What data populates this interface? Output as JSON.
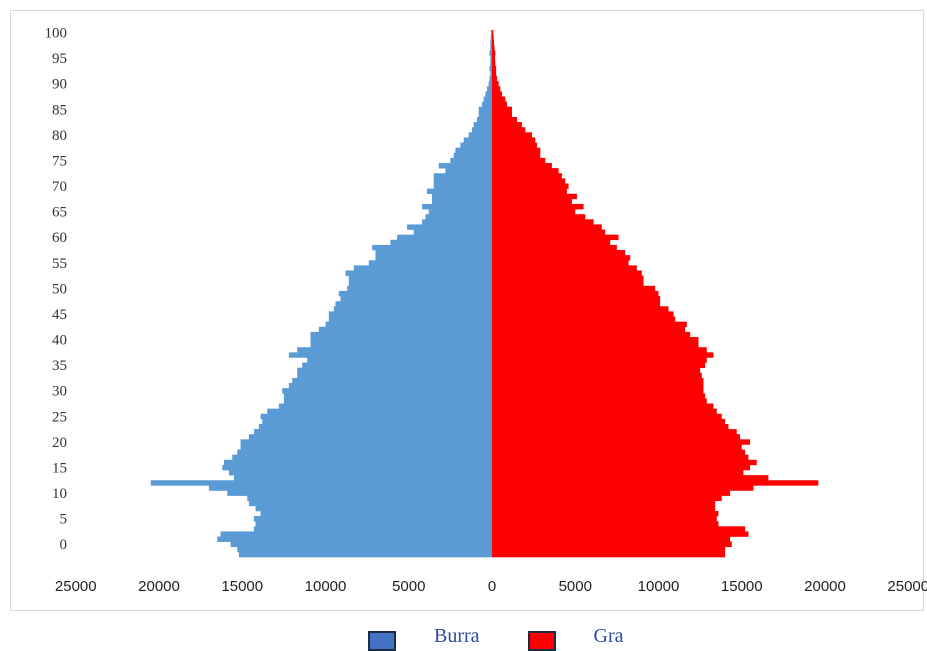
{
  "chart_data": {
    "type": "bar",
    "orientation": "horizontal",
    "subtype": "population-pyramid",
    "title": "",
    "xlabel": "",
    "ylabel": "",
    "y_ticks": [
      0,
      5,
      10,
      15,
      20,
      25,
      30,
      35,
      40,
      45,
      50,
      55,
      60,
      65,
      70,
      75,
      80,
      85,
      90,
      95,
      100
    ],
    "x_tick_labels": [
      "25000",
      "20000",
      "15000",
      "10000",
      "5000",
      "0",
      "5000",
      "10000",
      "15000",
      "20000",
      "25000"
    ],
    "xlim": [
      -25000,
      25000
    ],
    "ylim": [
      -3,
      101
    ],
    "grid": false,
    "legend_position": "bottom",
    "ages": [
      -2,
      -1,
      0,
      1,
      2,
      3,
      4,
      5,
      6,
      7,
      8,
      9,
      10,
      11,
      12,
      13,
      14,
      15,
      16,
      17,
      18,
      19,
      20,
      21,
      22,
      23,
      24,
      25,
      26,
      27,
      28,
      29,
      30,
      31,
      32,
      33,
      34,
      35,
      36,
      37,
      38,
      39,
      40,
      41,
      42,
      43,
      44,
      45,
      46,
      47,
      48,
      49,
      50,
      51,
      52,
      53,
      54,
      55,
      56,
      57,
      58,
      59,
      60,
      61,
      62,
      63,
      64,
      65,
      66,
      67,
      68,
      69,
      70,
      71,
      72,
      73,
      74,
      75,
      76,
      77,
      78,
      79,
      80,
      81,
      82,
      83,
      84,
      85,
      86,
      87,
      88,
      89,
      90,
      91,
      92,
      93,
      94,
      95,
      96,
      97,
      98,
      99,
      100
    ],
    "series": [
      {
        "name": "Burra",
        "color": "#5b9bd5",
        "values": [
          15200,
          15300,
          15700,
          16500,
          16300,
          14300,
          14200,
          14300,
          13900,
          14200,
          14600,
          14700,
          15900,
          17000,
          20500,
          15500,
          15800,
          16200,
          16100,
          15600,
          15300,
          15100,
          15100,
          14600,
          14300,
          14000,
          13800,
          13900,
          13500,
          12800,
          12500,
          12500,
          12600,
          12200,
          12000,
          11700,
          11700,
          11400,
          11100,
          12200,
          11700,
          10900,
          10900,
          10900,
          10400,
          10000,
          9800,
          9800,
          9500,
          9400,
          9100,
          9200,
          8700,
          8600,
          8600,
          8800,
          8300,
          7400,
          7000,
          7000,
          7200,
          6100,
          5700,
          4700,
          5100,
          4200,
          4000,
          3800,
          4200,
          3600,
          3600,
          3900,
          3500,
          3500,
          3500,
          2800,
          3200,
          2500,
          2300,
          2200,
          1900,
          1700,
          1400,
          1200,
          1100,
          900,
          800,
          800,
          600,
          500,
          400,
          300,
          200,
          150,
          100,
          150,
          100,
          100,
          150,
          100,
          100,
          80,
          60,
          50,
          100
        ],
        "labels_note": ""
      },
      {
        "name": "Gra",
        "color": "#ff0000",
        "values": [
          14000,
          14000,
          14400,
          14300,
          15400,
          15200,
          13600,
          13500,
          13600,
          13400,
          13400,
          13800,
          14300,
          15700,
          19600,
          16600,
          15100,
          15500,
          15900,
          15400,
          15200,
          15000,
          15500,
          14900,
          14700,
          14200,
          14000,
          13800,
          13500,
          13300,
          12900,
          12800,
          12700,
          12700,
          12700,
          12600,
          12500,
          12800,
          12900,
          13300,
          12900,
          12400,
          12400,
          11900,
          11600,
          11700,
          11000,
          10900,
          10600,
          10100,
          10100,
          10000,
          9800,
          9100,
          9100,
          9000,
          8700,
          8200,
          8300,
          8000,
          7500,
          7100,
          7600,
          6800,
          6600,
          6100,
          5600,
          5000,
          5500,
          4800,
          5100,
          4500,
          4600,
          4400,
          4200,
          4000,
          3600,
          3200,
          2900,
          2900,
          2700,
          2600,
          2400,
          2000,
          1800,
          1500,
          1200,
          1200,
          900,
          800,
          600,
          500,
          400,
          300,
          250,
          250,
          200,
          180,
          200,
          150,
          120,
          100,
          80,
          80,
          250
        ]
      }
    ]
  },
  "legend": {
    "items": [
      {
        "label": "Burra",
        "color": "#4472c4"
      },
      {
        "label": "Gra",
        "color": "#ff0000"
      }
    ]
  }
}
